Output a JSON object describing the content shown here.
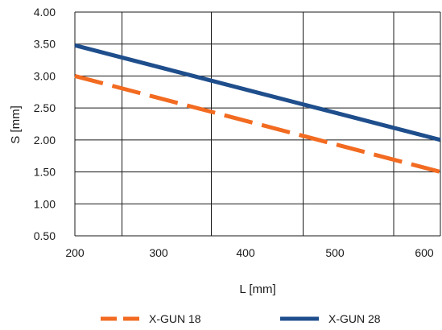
{
  "chart_data": {
    "type": "line",
    "title": "",
    "xlabel": "L [mm]",
    "ylabel": "S [mm]",
    "xlim": [
      210,
      620
    ],
    "ylim": [
      0.5,
      4.0
    ],
    "x_ticks": [
      200,
      300,
      400,
      500,
      600
    ],
    "x_tick_labels": [
      "200",
      "300",
      "400",
      "500",
      "600"
    ],
    "y_ticks": [
      0.5,
      1.0,
      1.5,
      2.0,
      2.5,
      3.0,
      3.5,
      4.0
    ],
    "y_tick_labels": [
      "0.50",
      "1.00",
      "1.50",
      "2.00",
      "2.50",
      "3.00",
      "3.50",
      "4.00"
    ],
    "grid": true,
    "legend_position": "bottom",
    "series": [
      {
        "name": "X-GUN 18",
        "color": "#F26B21",
        "dash": "dashed",
        "x": [
          210,
          620
        ],
        "y": [
          3.0,
          1.5
        ]
      },
      {
        "name": "X-GUN 28",
        "color": "#1F4E8C",
        "dash": "solid",
        "x": [
          210,
          620
        ],
        "y": [
          3.48,
          2.0
        ]
      }
    ]
  }
}
